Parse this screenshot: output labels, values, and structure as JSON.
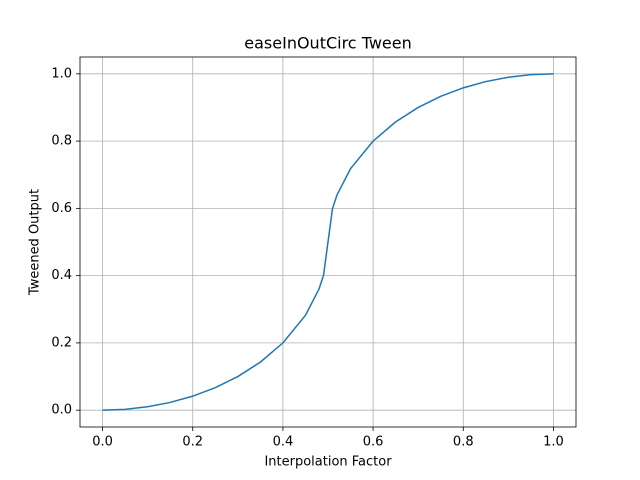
{
  "chart_data": {
    "type": "line",
    "title": "easeInOutCirc Tween",
    "x_label": "Interpolation Factor",
    "y_label": "Tweened Output",
    "x": [
      0,
      0.05,
      0.1,
      0.15,
      0.2,
      0.25,
      0.3,
      0.35,
      0.4,
      0.45,
      0.48,
      0.49,
      0.5,
      0.51,
      0.52,
      0.55,
      0.6,
      0.65,
      0.7,
      0.75,
      0.8,
      0.85,
      0.9,
      0.95,
      1
    ],
    "series": [
      {
        "color": "#1f77b4",
        "values": [
          0,
          0.0025,
          0.0101,
          0.023,
          0.0417,
          0.067,
          0.1,
          0.1429,
          0.2,
          0.2821,
          0.36,
          0.4005,
          0.5,
          0.5995,
          0.64,
          0.7179,
          0.8,
          0.8571,
          0.9,
          0.933,
          0.9583,
          0.977,
          0.9899,
          0.9975,
          1
        ]
      }
    ],
    "xlim": [
      -0.05,
      1.05
    ],
    "ylim": [
      -0.05,
      1.05
    ],
    "xticks": [
      {
        "value": 0,
        "label": "0.0"
      },
      {
        "value": 0.2,
        "label": "0.2"
      },
      {
        "value": 0.4,
        "label": "0.4"
      },
      {
        "value": 0.6,
        "label": "0.6"
      },
      {
        "value": 0.8,
        "label": "0.8"
      },
      {
        "value": 1,
        "label": "1.0"
      }
    ],
    "yticks": [
      {
        "value": 0,
        "label": "0.0"
      },
      {
        "value": 0.2,
        "label": "0.2"
      },
      {
        "value": 0.4,
        "label": "0.4"
      },
      {
        "value": 0.6,
        "label": "0.6"
      },
      {
        "value": 0.8,
        "label": "0.8"
      },
      {
        "value": 1,
        "label": "1.0"
      }
    ],
    "grid": true
  }
}
